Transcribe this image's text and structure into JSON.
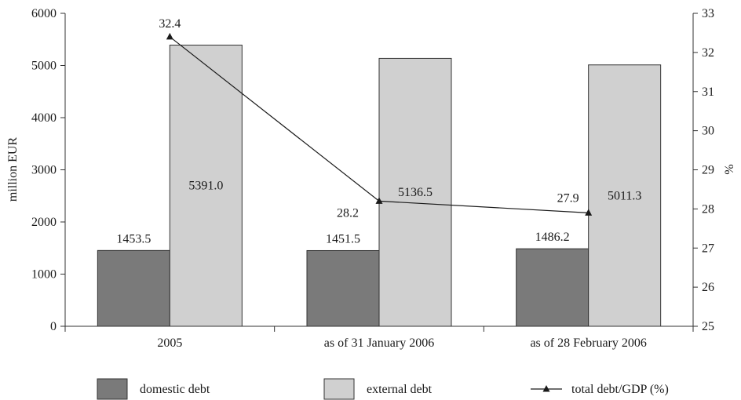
{
  "chart_data": {
    "type": "bar",
    "categories": [
      "2005",
      "as of 31 January 2006",
      "as of 28 February 2006"
    ],
    "series": [
      {
        "name": "domestic debt",
        "kind": "bar",
        "axis": "left",
        "color": "#7a7a7a",
        "values": [
          1453.5,
          1451.5,
          1486.2
        ],
        "labels": [
          "1453.5",
          "1451.5",
          "1486.2"
        ]
      },
      {
        "name": "external debt",
        "kind": "bar",
        "axis": "left",
        "color": "#d0d0d0",
        "values": [
          5391.0,
          5136.5,
          5011.3
        ],
        "labels": [
          "5391.0",
          "5136.5",
          "5011.3"
        ]
      },
      {
        "name": "total debt/GDP (%)",
        "kind": "line",
        "axis": "right",
        "color": "#1a1a1a",
        "marker": "triangle",
        "values": [
          32.4,
          28.2,
          27.9
        ],
        "labels": [
          "32.4",
          "28.2",
          "27.9"
        ]
      }
    ],
    "ylabel": "million EUR",
    "ylim": [
      0,
      6000
    ],
    "yticks": [
      "0",
      "1000",
      "2000",
      "3000",
      "4000",
      "5000",
      "6000"
    ],
    "y2label": "%",
    "y2lim": [
      25,
      33
    ],
    "y2ticks": [
      "25",
      "26",
      "27",
      "28",
      "29",
      "30",
      "31",
      "32",
      "33"
    ],
    "grid": false,
    "legend_position": "bottom"
  }
}
